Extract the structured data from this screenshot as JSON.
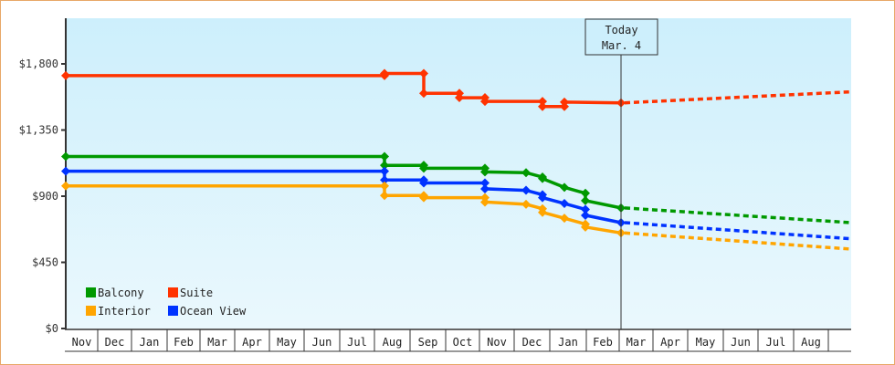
{
  "chart_data": {
    "type": "line",
    "title": "",
    "xlabel": "",
    "ylabel": "",
    "ylim": [
      0,
      2100
    ],
    "y_ticks": [
      "$0",
      "$450",
      "$900",
      "$1,350",
      "$1,800"
    ],
    "y_tick_values": [
      0,
      450,
      900,
      1350,
      1800
    ],
    "x_ticks": [
      "Nov",
      "Dec",
      "Jan",
      "Feb",
      "Mar",
      "Apr",
      "May",
      "Jun",
      "Jul",
      "Aug",
      "Sep",
      "Oct",
      "Nov",
      "Dec",
      "Jan",
      "Feb",
      "Mar",
      "Apr",
      "May",
      "Jun",
      "Jul",
      "Aug"
    ],
    "grid": false,
    "legend_position": "lower-left",
    "today_marker": {
      "label_line1": "Today",
      "label_line2": "Mar. 4"
    },
    "series": [
      {
        "name": "Suite",
        "color": "#ff3300",
        "points": [
          [
            "Nov",
            1720
          ],
          [
            "Aug",
            1720
          ],
          [
            "Aug",
            1735
          ],
          [
            "Sep",
            1735
          ],
          [
            "Sep",
            1600
          ],
          [
            "Oct",
            1600
          ],
          [
            "Oct",
            1570
          ],
          [
            "Nov",
            1570
          ],
          [
            "Nov",
            1545
          ],
          [
            "Dec",
            1545
          ],
          [
            "Dec",
            1510
          ],
          [
            "Jan",
            1510
          ],
          [
            "Jan",
            1540
          ],
          [
            "Mar 4",
            1535
          ]
        ],
        "forecast": [
          [
            "Mar 4",
            1535
          ],
          [
            "Aug end",
            1610
          ]
        ]
      },
      {
        "name": "Balcony",
        "color": "#009900",
        "points": [
          [
            "Nov",
            1170
          ],
          [
            "Aug",
            1170
          ],
          [
            "Aug",
            1110
          ],
          [
            "Sep",
            1110
          ],
          [
            "Sep",
            1090
          ],
          [
            "Nov",
            1090
          ],
          [
            "Nov",
            1065
          ],
          [
            "Dec",
            1060
          ],
          [
            "Dec",
            1030
          ],
          [
            "Jan",
            1020
          ],
          [
            "Jan",
            960
          ],
          [
            "Feb",
            920
          ],
          [
            "Feb",
            870
          ],
          [
            "Mar 4",
            820
          ]
        ],
        "forecast": [
          [
            "Mar 4",
            820
          ],
          [
            "Aug end",
            720
          ]
        ]
      },
      {
        "name": "Ocean View",
        "color": "#0033ff",
        "points": [
          [
            "Nov",
            1070
          ],
          [
            "Aug",
            1070
          ],
          [
            "Aug",
            1010
          ],
          [
            "Sep",
            1010
          ],
          [
            "Sep",
            990
          ],
          [
            "Nov",
            990
          ],
          [
            "Nov",
            950
          ],
          [
            "Dec",
            940
          ],
          [
            "Dec",
            910
          ],
          [
            "Jan",
            890
          ],
          [
            "Jan",
            850
          ],
          [
            "Feb",
            810
          ],
          [
            "Feb",
            770
          ],
          [
            "Mar 4",
            720
          ]
        ],
        "forecast": [
          [
            "Mar 4",
            720
          ],
          [
            "Aug end",
            610
          ]
        ]
      },
      {
        "name": "Interior",
        "color": "#ffa500",
        "points": [
          [
            "Nov",
            970
          ],
          [
            "Aug",
            970
          ],
          [
            "Aug",
            905
          ],
          [
            "Sep",
            905
          ],
          [
            "Sep",
            890
          ],
          [
            "Nov",
            890
          ],
          [
            "Nov",
            860
          ],
          [
            "Dec",
            845
          ],
          [
            "Dec",
            815
          ],
          [
            "Jan",
            790
          ],
          [
            "Jan",
            750
          ],
          [
            "Feb",
            710
          ],
          [
            "Feb",
            690
          ],
          [
            "Mar 4",
            650
          ]
        ],
        "forecast": [
          [
            "Mar 4",
            650
          ],
          [
            "Aug end",
            540
          ]
        ]
      }
    ]
  },
  "legend": [
    {
      "label": "Balcony",
      "color": "#009900"
    },
    {
      "label": "Suite",
      "color": "#ff3300"
    },
    {
      "label": "Interior",
      "color": "#ffa500"
    },
    {
      "label": "Ocean View",
      "color": "#0033ff"
    }
  ],
  "today": {
    "line1": "Today",
    "line2": "Mar. 4"
  }
}
